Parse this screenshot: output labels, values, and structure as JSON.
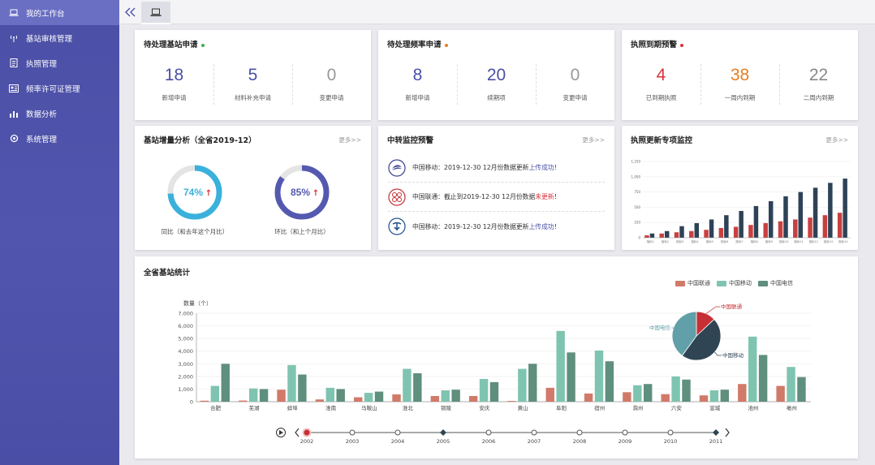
{
  "sidebar": {
    "items": [
      {
        "label": "我的工作台",
        "icon": "laptop-icon",
        "active": true
      },
      {
        "label": "基站审核管理",
        "icon": "antenna-icon"
      },
      {
        "label": "执照管理",
        "icon": "document-icon"
      },
      {
        "label": "频率许可证管理",
        "icon": "certificate-icon"
      },
      {
        "label": "数据分析",
        "icon": "bar-chart-icon"
      },
      {
        "label": "系统管理",
        "icon": "settings-icon"
      }
    ]
  },
  "topbar": {
    "collapse_label": "«",
    "home_icon": "laptop-icon"
  },
  "cards": {
    "pending_station": {
      "title": "待处理基站申请",
      "dot_color": "#3cb34a",
      "stats": [
        {
          "value": "18",
          "label": "新增申请",
          "color": "#4b4fa6"
        },
        {
          "value": "5",
          "label": "材料补充申请",
          "color": "#4b4fa6"
        },
        {
          "value": "0",
          "label": "变更申请",
          "color": "#999999"
        }
      ]
    },
    "pending_freq": {
      "title": "待处理频率申请",
      "dot_color": "#e67e22",
      "stats": [
        {
          "value": "8",
          "label": "新增申请",
          "color": "#4b4fa6"
        },
        {
          "value": "20",
          "label": "续期项",
          "color": "#4b4fa6"
        },
        {
          "value": "0",
          "label": "变更申请",
          "color": "#999999"
        }
      ]
    },
    "license_expiry": {
      "title": "执照到期预警",
      "dot_color": "#d9303a",
      "stats": [
        {
          "value": "4",
          "label": "已到期执照",
          "color": "#d9303a"
        },
        {
          "value": "38",
          "label": "一周内到期",
          "color": "#e67e22"
        },
        {
          "value": "22",
          "label": "二周内到期",
          "color": "#888888"
        }
      ]
    },
    "growth": {
      "title": "基站增量分析（全省2019-12）",
      "more": "更多>>",
      "gauges": [
        {
          "value": 0.74,
          "text": "74%",
          "arrow": "↑",
          "label": "同比（和去年这个月比）",
          "color": "#3ab1dc"
        },
        {
          "value": 0.85,
          "text": "85%",
          "arrow": "↑",
          "label": "环比（和上个月比）",
          "color": "#5459b0"
        }
      ]
    },
    "monitor": {
      "title": "中转监控预警",
      "more": "更多>>",
      "alerts": [
        {
          "icon": "china-mobile-icon",
          "prefix": "中国移动：2019-12-30 12月份数据更新",
          "status": "上传成功",
          "status_color": "#4b4fa6",
          "suffix": "！"
        },
        {
          "icon": "china-unicom-icon",
          "prefix": "中国联通：截止到2019-12-30 12月份数据",
          "status": "未更新",
          "status_color": "#d9303a",
          "suffix": "！"
        },
        {
          "icon": "china-telecom-icon",
          "prefix": "中国移动：2019-12-30 12月份数据更新",
          "status": "上传成功",
          "status_color": "#4b4fa6",
          "suffix": "！"
        }
      ]
    },
    "license_update": {
      "title": "执照更新专项监控",
      "more": "更多>>"
    },
    "province": {
      "title": "全省基站统计",
      "legend": [
        "中国联通",
        "中国移动",
        "中国电信"
      ]
    }
  },
  "chart_data": [
    {
      "type": "bar",
      "title": "执照更新专项监控",
      "ylim": [
        0,
        1250
      ],
      "yticks": [
        "1,250",
        "1,000",
        "750",
        "500",
        "250",
        "0"
      ],
      "categories": [
        "指标1",
        "指标2",
        "指标3",
        "指标4",
        "指标5",
        "指标6",
        "指标7",
        "指标8",
        "指标9",
        "指标10",
        "指标11",
        "指标12",
        "指标13",
        "指标14"
      ],
      "series": [
        {
          "color": "#c94040",
          "values": [
            40,
            70,
            90,
            110,
            130,
            160,
            180,
            210,
            240,
            270,
            300,
            330,
            370,
            410
          ]
        },
        {
          "color": "#2e4257",
          "values": [
            70,
            110,
            190,
            240,
            300,
            370,
            440,
            520,
            600,
            680,
            750,
            820,
            900,
            970
          ]
        }
      ]
    },
    {
      "type": "bar",
      "title": "全省基站统计",
      "ylabel": "数量（个）",
      "ylim": [
        0,
        7000
      ],
      "yticks": [
        "7,000",
        "6,000",
        "5,000",
        "4,000",
        "3,000",
        "2,000",
        "1,000",
        "0"
      ],
      "categories": [
        "合肥",
        "芜湖",
        "蚌埠",
        "淮南",
        "马鞍山",
        "淮北",
        "铜陵",
        "安庆",
        "黄山",
        "阜阳",
        "宿州",
        "滁州",
        "六安",
        "宣城",
        "池州",
        "亳州"
      ],
      "series": [
        {
          "name": "中国联通",
          "color": "#d17a6a",
          "values": [
            80,
            90,
            950,
            180,
            350,
            580,
            450,
            450,
            60,
            1100,
            650,
            750,
            600,
            500,
            1400,
            1250
          ]
        },
        {
          "name": "中国移动",
          "color": "#7fc4b0",
          "values": [
            1250,
            1050,
            2900,
            1100,
            700,
            2600,
            900,
            1800,
            2600,
            5600,
            4050,
            1300,
            2000,
            900,
            5150,
            2750
          ]
        },
        {
          "name": "中国电信",
          "color": "#5f8f7d",
          "values": [
            3000,
            1000,
            2150,
            1000,
            800,
            2250,
            950,
            1550,
            3000,
            3900,
            3200,
            1400,
            1750,
            950,
            3700,
            1950
          ]
        }
      ]
    },
    {
      "type": "pie",
      "slices": [
        {
          "name": "中国联通",
          "value": 13,
          "color": "#c62f34"
        },
        {
          "name": "中国移动",
          "value": 47,
          "color": "#2f4554"
        },
        {
          "name": "中国电信",
          "value": 40,
          "color": "#61a0a8"
        }
      ]
    }
  ],
  "timeline": {
    "years": [
      "2002",
      "2003",
      "2004",
      "2005",
      "2006",
      "2007",
      "2008",
      "2009",
      "2010",
      "2011"
    ],
    "current": "2002"
  }
}
